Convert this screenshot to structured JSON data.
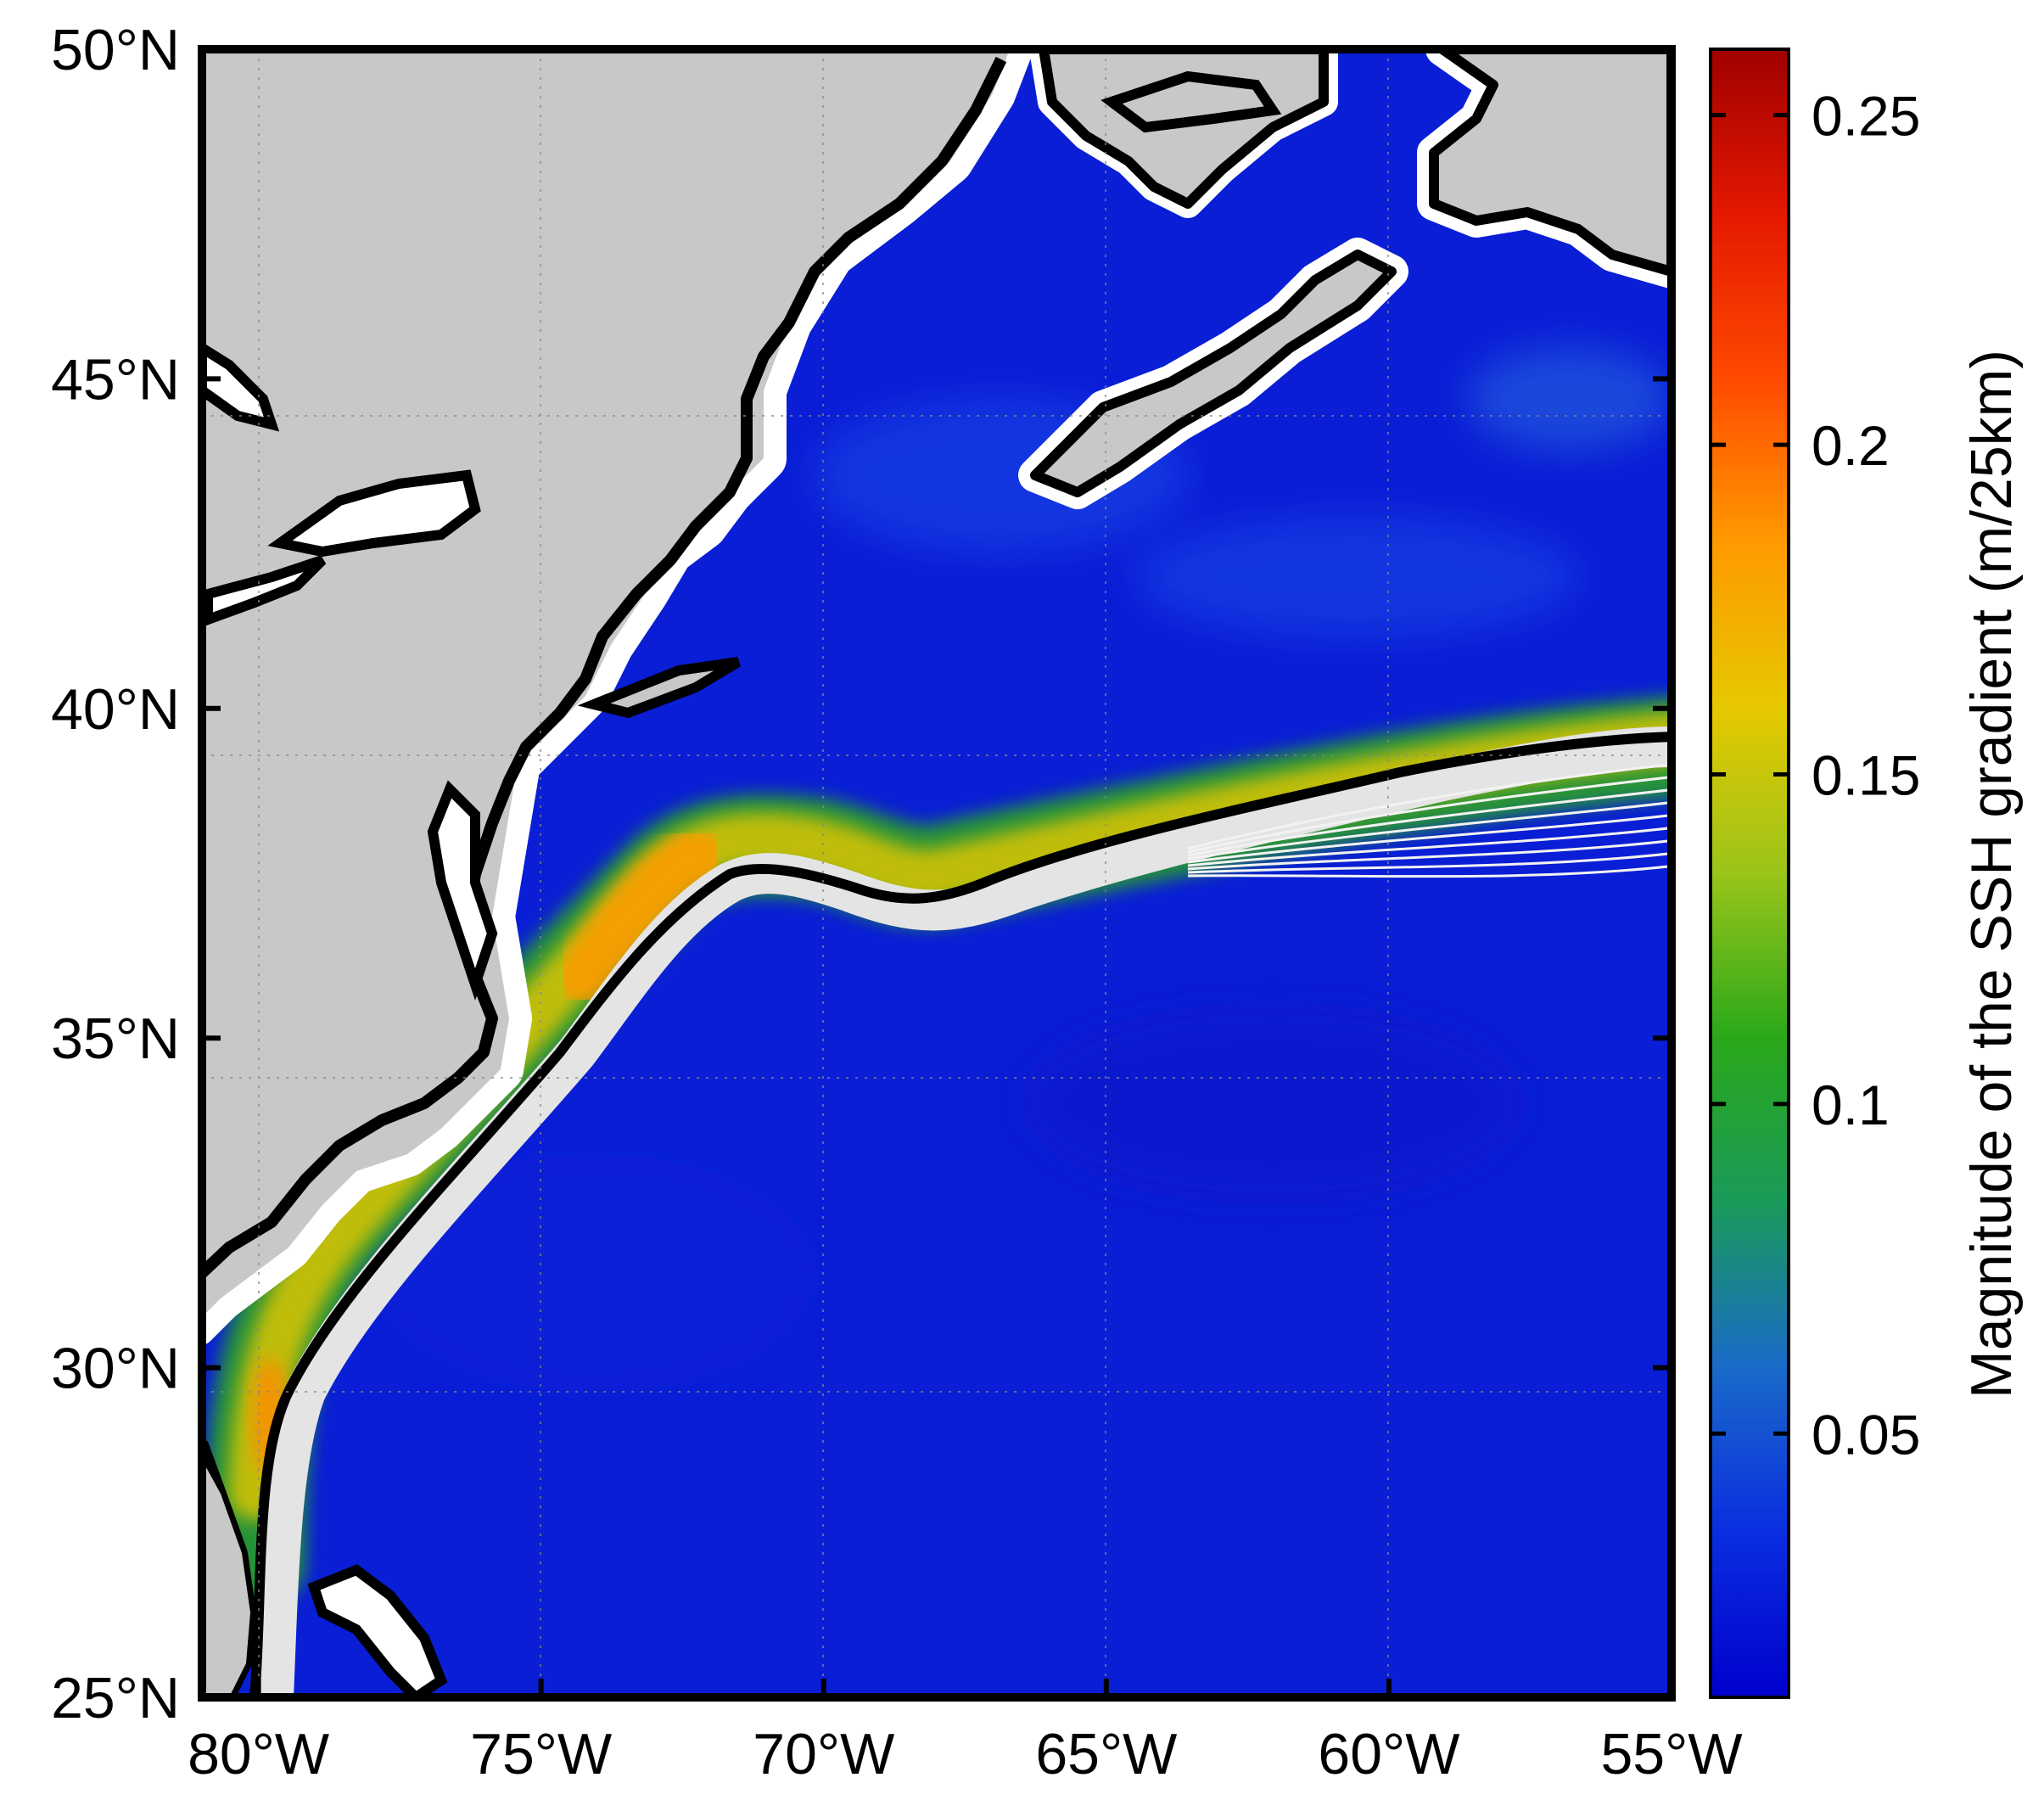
{
  "map": {
    "extent": {
      "lon_min": -81,
      "lon_max": -55,
      "lat_min": 25,
      "lat_max": 50
    },
    "x_ticks": [
      {
        "lon": -80,
        "label": "80°W"
      },
      {
        "lon": -75,
        "label": "75°W"
      },
      {
        "lon": -70,
        "label": "70°W"
      },
      {
        "lon": -65,
        "label": "65°W"
      },
      {
        "lon": -60,
        "label": "60°W"
      },
      {
        "lon": -55,
        "label": "55°W"
      }
    ],
    "y_ticks": [
      {
        "lat": 50,
        "label": "50°N"
      },
      {
        "lat": 45,
        "label": "45°N"
      },
      {
        "lat": 40,
        "label": "40°N"
      },
      {
        "lat": 35,
        "label": "35°N"
      },
      {
        "lat": 30,
        "label": "30°N"
      },
      {
        "lat": 25,
        "label": "25°N"
      }
    ],
    "grid": true,
    "colors": {
      "land": "#c8c8c8",
      "ocean": "#0a1ed6",
      "coastline": "#000000",
      "path_envelope": "#e4e4e4"
    }
  },
  "colorbar": {
    "title": "Magnitude of the SSH gradient (m/25km)",
    "min": 0.01,
    "max": 0.26,
    "ticks": [
      {
        "value": 0.05,
        "label": "0.05"
      },
      {
        "value": 0.1,
        "label": "0.1"
      },
      {
        "value": 0.15,
        "label": "0.15"
      },
      {
        "value": 0.2,
        "label": "0.2"
      },
      {
        "value": 0.25,
        "label": "0.25"
      }
    ],
    "colormap": [
      "#0000cc",
      "#0a2ee0",
      "#1a6ac8",
      "#1a9a5a",
      "#2aa81a",
      "#9ac41a",
      "#e6c800",
      "#ff9a00",
      "#ff4a00",
      "#e41800",
      "#a00000"
    ]
  }
}
